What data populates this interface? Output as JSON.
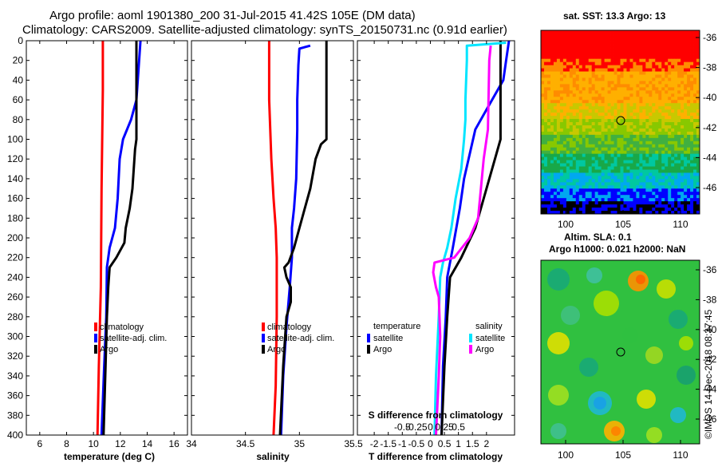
{
  "header": {
    "line1": "Argo profile: aoml 1901380_200 31-Jul-2015 41.42S 105E (DM data)",
    "line2": "Climatology: CARS2009. Satellite-adjusted climatology: synTS_20150731.nc (0.91d earlier)"
  },
  "colors": {
    "climatology": "#ff0000",
    "satellite": "#0000ff",
    "argo": "#000000",
    "sal_satellite": "#00e5ff",
    "sal_argo": "#ff00ff"
  },
  "chart_data": [
    {
      "type": "line",
      "title": "",
      "xlabel": "temperature (deg C)",
      "ylabel": "",
      "xlim": [
        5,
        17
      ],
      "ylim": [
        0,
        400
      ],
      "xticks": [
        6,
        8,
        10,
        12,
        14,
        16
      ],
      "yticks": [
        0,
        20,
        40,
        60,
        80,
        100,
        120,
        140,
        160,
        180,
        200,
        220,
        240,
        260,
        280,
        300,
        320,
        340,
        360,
        380,
        400
      ],
      "legend": [
        "climatology",
        "satellite-adj. clim.",
        "Argo"
      ],
      "series": [
        {
          "name": "climatology",
          "color": "#ff0000",
          "points": [
            [
              10.7,
              0
            ],
            [
              10.7,
              50
            ],
            [
              10.6,
              150
            ],
            [
              10.55,
              250
            ],
            [
              10.4,
              330
            ],
            [
              10.3,
              400
            ]
          ]
        },
        {
          "name": "satellite-adj. clim.",
          "color": "#0000ff",
          "points": [
            [
              13.5,
              0
            ],
            [
              13.4,
              20
            ],
            [
              13.3,
              40
            ],
            [
              13.2,
              60
            ],
            [
              12.8,
              80
            ],
            [
              12.2,
              100
            ],
            [
              11.95,
              120
            ],
            [
              11.8,
              160
            ],
            [
              11.6,
              190
            ],
            [
              11.2,
              210
            ],
            [
              11.0,
              230
            ],
            [
              10.95,
              280
            ],
            [
              10.8,
              330
            ],
            [
              10.6,
              400
            ]
          ]
        },
        {
          "name": "Argo",
          "color": "#000000",
          "points": [
            [
              13.2,
              0
            ],
            [
              13.2,
              100
            ],
            [
              13.1,
              110
            ],
            [
              12.9,
              150
            ],
            [
              12.7,
              170
            ],
            [
              12.4,
              190
            ],
            [
              12.3,
              205
            ],
            [
              11.7,
              220
            ],
            [
              11.2,
              230
            ],
            [
              11.1,
              250
            ],
            [
              11.0,
              280
            ],
            [
              10.9,
              330
            ],
            [
              10.75,
              400
            ]
          ]
        }
      ]
    },
    {
      "type": "line",
      "xlabel": "salinity",
      "xlim": [
        34,
        35.5
      ],
      "ylim": [
        0,
        400
      ],
      "xticks": [
        34,
        34.5,
        35,
        35.5
      ],
      "legend": [
        "climatology",
        "satellite-adj. clim.",
        "Argo"
      ],
      "series": [
        {
          "name": "climatology",
          "color": "#ff0000",
          "points": [
            [
              34.72,
              0
            ],
            [
              34.72,
              60
            ],
            [
              34.74,
              120
            ],
            [
              34.76,
              160
            ],
            [
              34.78,
              190
            ],
            [
              34.79,
              220
            ],
            [
              34.79,
              280
            ],
            [
              34.78,
              350
            ],
            [
              34.76,
              400
            ]
          ]
        },
        {
          "name": "satellite-adj. clim.",
          "color": "#0000ff",
          "points": [
            [
              35.1,
              5
            ],
            [
              35.0,
              8
            ],
            [
              34.99,
              25
            ],
            [
              34.98,
              60
            ],
            [
              34.98,
              90
            ],
            [
              34.97,
              140
            ],
            [
              34.95,
              170
            ],
            [
              34.93,
              190
            ],
            [
              34.93,
              220
            ],
            [
              34.91,
              250
            ],
            [
              34.88,
              290
            ],
            [
              34.85,
              340
            ],
            [
              34.83,
              400
            ]
          ]
        },
        {
          "name": "Argo",
          "color": "#000000",
          "points": [
            [
              35.25,
              0
            ],
            [
              35.25,
              100
            ],
            [
              35.2,
              105
            ],
            [
              35.15,
              120
            ],
            [
              35.1,
              150
            ],
            [
              35.05,
              170
            ],
            [
              35.0,
              190
            ],
            [
              34.95,
              210
            ],
            [
              34.9,
              225
            ],
            [
              34.86,
              230
            ],
            [
              34.88,
              240
            ],
            [
              34.92,
              250
            ],
            [
              34.92,
              265
            ],
            [
              34.88,
              280
            ],
            [
              34.85,
              330
            ],
            [
              34.82,
              400
            ]
          ]
        }
      ]
    },
    {
      "type": "line",
      "xlabel": "T difference from climatology",
      "xlabel2": "S difference from climatology",
      "xlim": [
        -2.6,
        3.0
      ],
      "ylim": [
        0,
        400
      ],
      "xticks": [
        -2,
        -1.5,
        -1,
        -0.5,
        0,
        0.5,
        1,
        1.5,
        2
      ],
      "xticks_top": [
        "-0.5",
        "-0.25",
        "0",
        "0.25",
        "0.5"
      ],
      "legend_temperature": {
        "title": "temperature",
        "items": [
          "satellite",
          "Argo"
        ]
      },
      "legend_salinity": {
        "title": "salinity",
        "items": [
          "satellite",
          "Argo"
        ]
      },
      "series": [
        {
          "name": "temperature satellite",
          "color": "#0000ff",
          "points": [
            [
              2.8,
              0
            ],
            [
              2.7,
              20
            ],
            [
              2.6,
              40
            ],
            [
              2.0,
              70
            ],
            [
              1.6,
              90
            ],
            [
              1.2,
              140
            ],
            [
              1.05,
              170
            ],
            [
              0.8,
              210
            ],
            [
              0.6,
              240
            ],
            [
              0.55,
              280
            ],
            [
              0.45,
              330
            ],
            [
              0.4,
              400
            ]
          ]
        },
        {
          "name": "temperature Argo",
          "color": "#000000",
          "points": [
            [
              2.5,
              0
            ],
            [
              2.5,
              100
            ],
            [
              2.3,
              120
            ],
            [
              1.9,
              160
            ],
            [
              1.6,
              190
            ],
            [
              1.1,
              220
            ],
            [
              0.7,
              240
            ],
            [
              0.6,
              280
            ],
            [
              0.5,
              330
            ],
            [
              0.4,
              400
            ]
          ]
        },
        {
          "name": "salinity satellite",
          "color": "#00e5ff",
          "points": [
            [
              2.7,
              2
            ],
            [
              1.3,
              5
            ],
            [
              1.3,
              20
            ],
            [
              1.25,
              60
            ],
            [
              1.25,
              80
            ],
            [
              1.2,
              100
            ],
            [
              1.1,
              130
            ],
            [
              0.9,
              160
            ],
            [
              0.75,
              190
            ],
            [
              0.6,
              210
            ],
            [
              0.45,
              225
            ],
            [
              0.35,
              240
            ],
            [
              0.3,
              280
            ],
            [
              0.2,
              340
            ],
            [
              0.15,
              400
            ]
          ]
        },
        {
          "name": "salinity Argo",
          "color": "#ff00ff",
          "points": [
            [
              2.15,
              5
            ],
            [
              2.1,
              20
            ],
            [
              2.05,
              90
            ],
            [
              1.9,
              120
            ],
            [
              1.8,
              150
            ],
            [
              1.7,
              180
            ],
            [
              1.4,
              200
            ],
            [
              0.85,
              220
            ],
            [
              0.15,
              225
            ],
            [
              0.1,
              235
            ],
            [
              0.2,
              250
            ],
            [
              0.3,
              260
            ],
            [
              0.35,
              300
            ],
            [
              0.3,
              340
            ],
            [
              0.2,
              400
            ]
          ]
        }
      ]
    }
  ],
  "sst_map": {
    "title": "sat. SST: 13.3 Argo: 13",
    "xticks": [
      "100",
      "105",
      "110"
    ],
    "yticks": [
      "-36",
      "-38",
      "-40",
      "-42",
      "-44",
      "-46"
    ],
    "palette": [
      "#ff0000",
      "#ff8c00",
      "#ffb000",
      "#c8c800",
      "#88c800",
      "#40b040",
      "#18a848",
      "#00c8a0",
      "#00a8f0",
      "#0000ff",
      "#000000"
    ]
  },
  "sla_map": {
    "title": "Altim. SLA: 0.1",
    "subtitle": "Argo h1000: 0.021 h2000: NaN",
    "xticks": [
      "100",
      "105",
      "110"
    ],
    "yticks": [
      "-36",
      "-38",
      "-40",
      "-42",
      "-44",
      "-46"
    ]
  },
  "footer": {
    "credit": "©IMOS 14-Dec-2018 08:37:45"
  }
}
